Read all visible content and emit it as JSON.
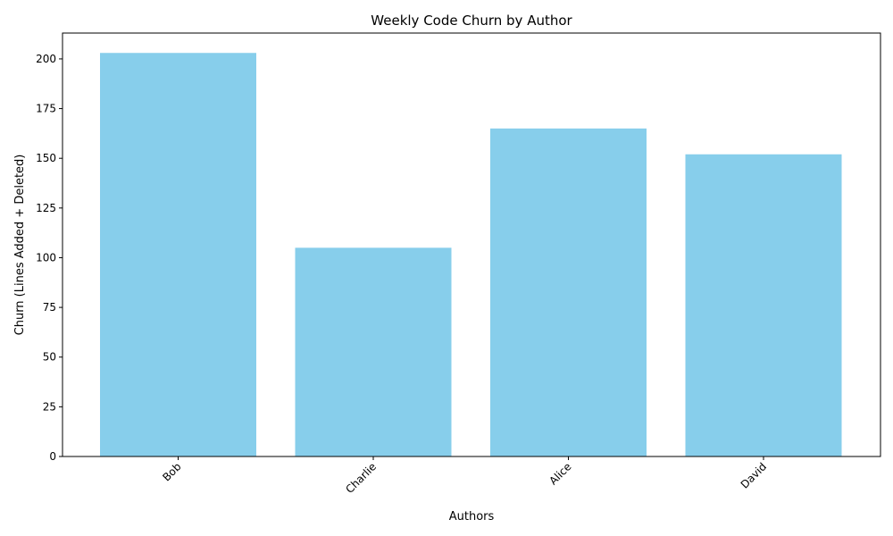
{
  "chart_data": {
    "type": "bar",
    "title": "Weekly Code Churn by Author",
    "xlabel": "Authors",
    "ylabel": "Churn (Lines Added + Deleted)",
    "categories": [
      "Bob",
      "Charlie",
      "Alice",
      "David"
    ],
    "values": [
      203,
      105,
      165,
      152
    ],
    "ylim": [
      0,
      213
    ],
    "yticks": [
      0,
      25,
      50,
      75,
      100,
      125,
      150,
      175,
      200
    ],
    "grid": false,
    "legend": "none",
    "bar_color": "#87CEEB",
    "x_tick_rotation_deg": 45
  }
}
